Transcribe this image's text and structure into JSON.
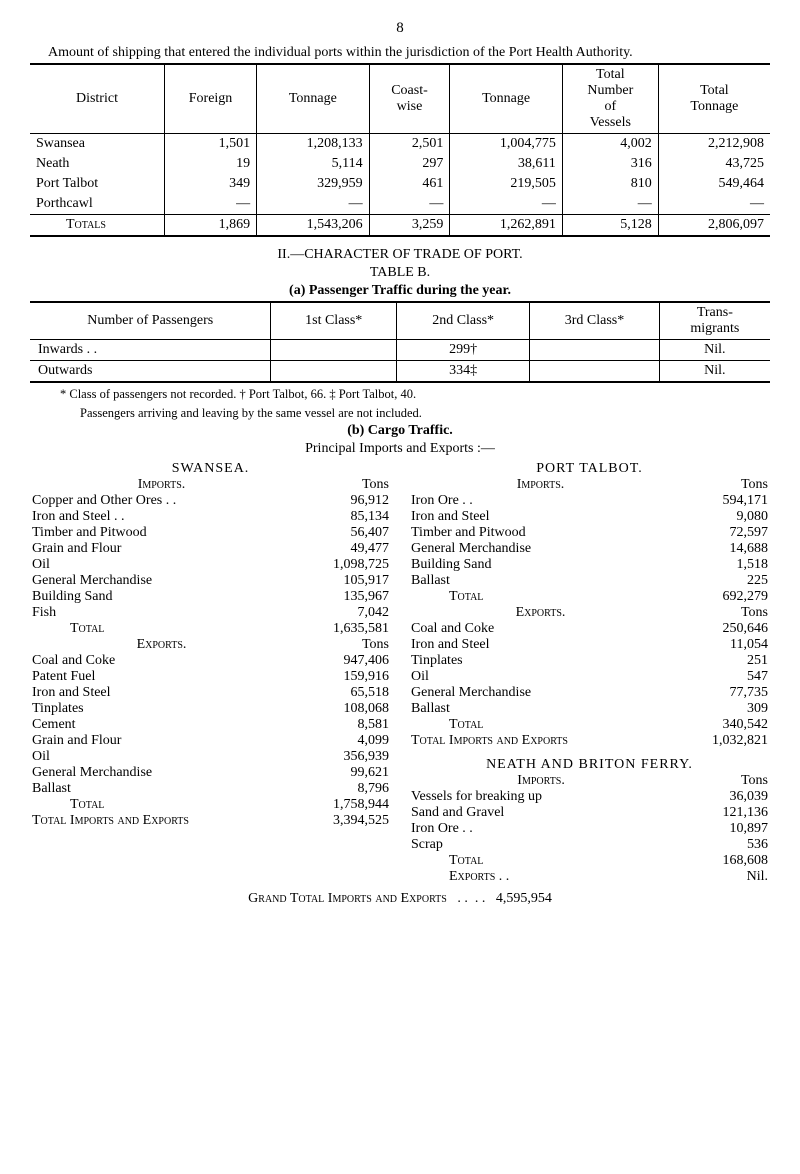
{
  "page_number": "8",
  "lead_text": "Amount of shipping that entered the individual ports within the jurisdiction of the Port Health Authority.",
  "shipping_table": {
    "headers": [
      "District",
      "Foreign",
      "Tonnage",
      "Coast-wise",
      "Tonnage",
      "Total Number of Vessels",
      "Total Tonnage"
    ],
    "rows": [
      [
        "Swansea",
        "1,501",
        "1,208,133",
        "2,501",
        "1,004,775",
        "4,002",
        "2,212,908"
      ],
      [
        "Neath",
        "19",
        "5,114",
        "297",
        "38,611",
        "316",
        "43,725"
      ],
      [
        "Port Talbot",
        "349",
        "329,959",
        "461",
        "219,505",
        "810",
        "549,464"
      ],
      [
        "Porthcawl",
        "—",
        "—",
        "—",
        "—",
        "—",
        "—"
      ]
    ],
    "totals": [
      "Totals",
      "1,869",
      "1,543,206",
      "3,259",
      "1,262,891",
      "5,128",
      "2,806,097"
    ]
  },
  "character_title": "II.—CHARACTER OF TRADE OF PORT.",
  "table_b": "TABLE B.",
  "passenger_caption": "(a) Passenger Traffic during the year.",
  "passenger_table": {
    "headers": [
      "Number of Passengers",
      "1st Class*",
      "2nd Class*",
      "3rd Class*",
      "Trans-migrants"
    ],
    "rows": [
      [
        "Inwards . .",
        "",
        "299†",
        "",
        "Nil."
      ],
      [
        "Outwards",
        "",
        "334‡",
        "",
        "Nil."
      ]
    ]
  },
  "footnote1": "* Class of passengers not recorded.   † Port Talbot, 66.   ‡ Port Talbot, 40.",
  "footnote2": "Passengers arriving and leaving by the same vessel are not included.",
  "cargo_title": "(b) Cargo Traffic.",
  "cargo_sub": "Principal Imports and Exports :—",
  "swansea": {
    "title": "SWANSEA.",
    "imports_label": "Imports.",
    "tons_label": "Tons",
    "imports": [
      [
        "Copper and Other Ores . .",
        "96,912"
      ],
      [
        "Iron and Steel   . .",
        "85,134"
      ],
      [
        "Timber and Pitwood",
        "56,407"
      ],
      [
        "Grain and Flour",
        "49,477"
      ],
      [
        "Oil",
        "1,098,725"
      ],
      [
        "General Merchandise",
        "105,917"
      ],
      [
        "Building Sand",
        "135,967"
      ],
      [
        "Fish",
        "7,042"
      ]
    ],
    "imports_total": [
      "Total",
      "1,635,581"
    ],
    "exports_label": "Exports.",
    "exports": [
      [
        "Coal and Coke",
        "947,406"
      ],
      [
        "Patent Fuel",
        "159,916"
      ],
      [
        "Iron and Steel",
        "65,518"
      ],
      [
        "Tinplates",
        "108,068"
      ],
      [
        "Cement",
        "8,581"
      ],
      [
        "Grain and Flour",
        "4,099"
      ],
      [
        "Oil",
        "356,939"
      ],
      [
        "General Merchandise",
        "99,621"
      ],
      [
        "Ballast",
        "8,796"
      ]
    ],
    "exports_total": [
      "Total",
      "1,758,944"
    ],
    "grand": [
      "Total Imports and Exports",
      "3,394,525"
    ]
  },
  "port_talbot": {
    "title": "PORT TALBOT.",
    "imports_label": "Imports.",
    "tons_label": "Tons",
    "imports": [
      [
        "Iron Ore . .",
        "594,171"
      ],
      [
        "Iron and Steel",
        "9,080"
      ],
      [
        "Timber and Pitwood",
        "72,597"
      ],
      [
        "General Merchandise",
        "14,688"
      ],
      [
        "Building Sand",
        "1,518"
      ],
      [
        "Ballast",
        "225"
      ]
    ],
    "imports_total": [
      "Total",
      "692,279"
    ],
    "exports_label": "Exports.",
    "exports": [
      [
        "Coal and Coke",
        "250,646"
      ],
      [
        "Iron and Steel",
        "11,054"
      ],
      [
        "Tinplates",
        "251"
      ],
      [
        "Oil",
        "547"
      ],
      [
        "General Merchandise",
        "77,735"
      ],
      [
        "Ballast",
        "309"
      ]
    ],
    "exports_total": [
      "Total",
      "340,542"
    ],
    "grand": [
      "Total Imports and Exports",
      "1,032,821"
    ]
  },
  "neath": {
    "title": "NEATH AND BRITON FERRY.",
    "imports_label": "Imports.",
    "tons_label": "Tons",
    "imports": [
      [
        "Vessels for breaking up",
        "36,039"
      ],
      [
        "Sand and Gravel",
        "121,136"
      ],
      [
        "Iron Ore . .",
        "10,897"
      ],
      [
        "Scrap",
        "536"
      ]
    ],
    "imports_total": [
      "Total",
      "168,608"
    ],
    "exports_line": [
      "Exports . .",
      "Nil."
    ]
  },
  "grand_total": [
    "Grand Total Imports and Exports",
    "4,595,954"
  ]
}
